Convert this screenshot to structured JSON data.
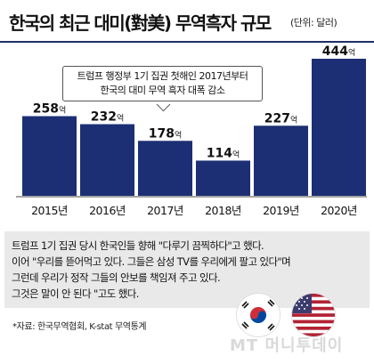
{
  "title": "한국의 최근 대미(對美) 무역흑자 규모",
  "unit_note": "(단위: 달러)",
  "callout": {
    "line1": "트럼프 행정부 1기 집권 첫해인 2017년부터",
    "line2": "한국의 대미 무역 흑자 대폭 감소"
  },
  "chart_data": {
    "type": "bar",
    "categories": [
      "2015년",
      "2016년",
      "2017년",
      "2018년",
      "2019년",
      "2020년"
    ],
    "values": [
      258,
      232,
      178,
      114,
      227,
      444
    ],
    "value_unit": "억",
    "series": [
      {
        "values": [
          258,
          232,
          178,
          114,
          227,
          444
        ]
      }
    ],
    "xlabel": "",
    "ylabel": "",
    "ylim": [
      0,
      444
    ],
    "bar_color": "#1c2f74",
    "grid": false
  },
  "quote": {
    "line1": "트럼프 1기 집권 당시 한국인들 향해 \"다루기 끔찍하다\"고 했다.",
    "line2": "이어 \"우리를 뜯어먹고 있다. 그들은 삼성 TV를 우리에게 팔고 있다\"며",
    "line3": "그런데 우리가 정작 그들의 안보를 책임져 주고 있다.",
    "line4": "그것은 말이 안 된다 \"고도 했다."
  },
  "source": "*자료: 한국무역협회, K-stat 무역통계",
  "watermark": "MT 머니투데이",
  "flags": [
    "south-korea-flag",
    "usa-flag"
  ],
  "colors": {
    "bar": "#1c2f74",
    "rule": "#1f2f63",
    "quote_bg": "#e9e9ea"
  }
}
